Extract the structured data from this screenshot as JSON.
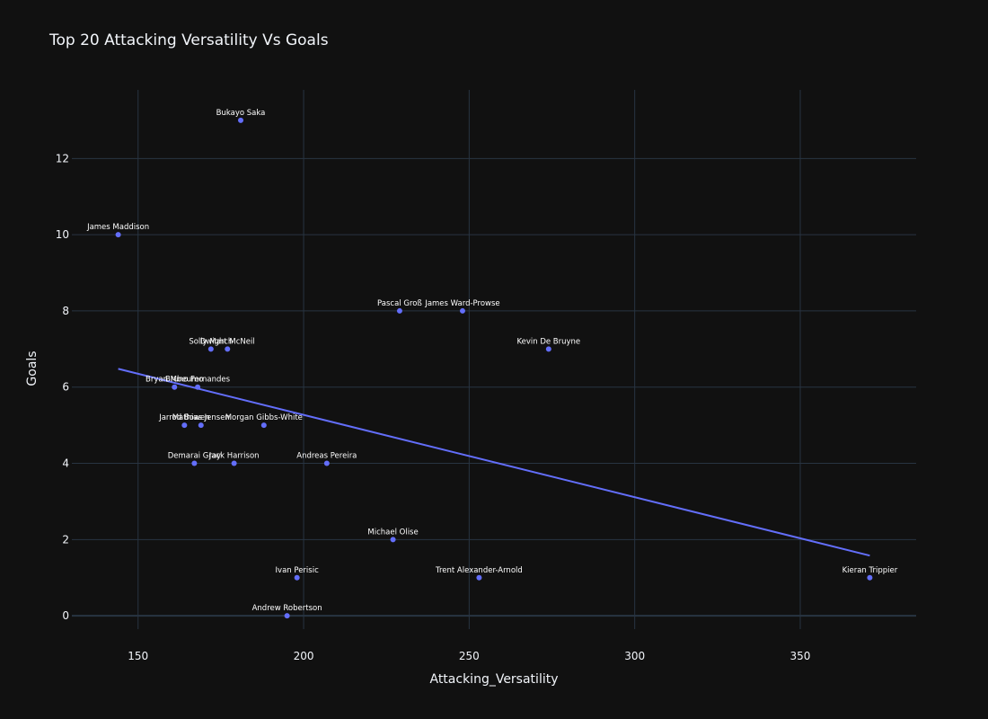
{
  "chart_data": {
    "type": "scatter",
    "title": "Top 20 Attacking Versatility Vs Goals",
    "xlabel": "Attacking_Versatility",
    "ylabel": "Goals",
    "xlim": [
      130,
      385
    ],
    "ylim": [
      -0.35,
      13.8
    ],
    "xticks": [
      150,
      200,
      250,
      300,
      350
    ],
    "yticks": [
      0,
      2,
      4,
      6,
      8,
      10,
      12
    ],
    "grid": true,
    "colors": {
      "background": "#111111",
      "grid": "#283442",
      "zeroline": "#283442",
      "marker": "#636efa",
      "trend": "#636efa",
      "text": "#f2f5fa"
    },
    "points": [
      {
        "label": "Bukayo Saka",
        "x": 181,
        "y": 13
      },
      {
        "label": "James Maddison",
        "x": 144,
        "y": 10
      },
      {
        "label": "Pascal Groß",
        "x": 229,
        "y": 8
      },
      {
        "label": "James Ward-Prowse",
        "x": 248,
        "y": 8
      },
      {
        "label": "Solly March",
        "x": 172,
        "y": 7
      },
      {
        "label": "Dwight McNeil",
        "x": 177,
        "y": 7
      },
      {
        "label": "Kevin De Bruyne",
        "x": 274,
        "y": 7
      },
      {
        "label": "Bryan Mbeumo",
        "x": 161,
        "y": 6
      },
      {
        "label": "Bruno Fernandes",
        "x": 168,
        "y": 6
      },
      {
        "label": "Jarrod Bowen",
        "x": 164,
        "y": 5
      },
      {
        "label": "Mathias Jensen",
        "x": 169,
        "y": 5
      },
      {
        "label": "Morgan Gibbs-White",
        "x": 188,
        "y": 5
      },
      {
        "label": "Demarai Gray",
        "x": 167,
        "y": 4
      },
      {
        "label": "Jack Harrison",
        "x": 179,
        "y": 4
      },
      {
        "label": "Andreas Pereira",
        "x": 207,
        "y": 4
      },
      {
        "label": "Michael Olise",
        "x": 227,
        "y": 2
      },
      {
        "label": "Ivan Perisic",
        "x": 198,
        "y": 1
      },
      {
        "label": "Trent Alexander-Arnold",
        "x": 253,
        "y": 1
      },
      {
        "label": "Kieran Trippier",
        "x": 371,
        "y": 1
      },
      {
        "label": "Andrew Robertson",
        "x": 195,
        "y": 0
      }
    ],
    "trendline": {
      "x": [
        144,
        371
      ],
      "y": [
        6.48,
        1.58
      ]
    }
  }
}
